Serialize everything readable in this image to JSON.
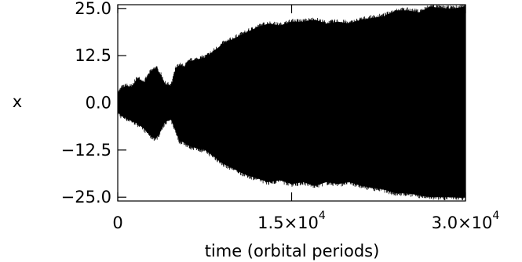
{
  "chart_data": {
    "type": "line",
    "title": "",
    "xlabel": "time (orbital periods)",
    "ylabel": "x",
    "xlim": [
      0,
      30000
    ],
    "ylim": [
      -26,
      26
    ],
    "x_ticks": [
      {
        "value": 0,
        "mantissa": "0",
        "exponent": ""
      },
      {
        "value": 15000,
        "mantissa": "1.5×10",
        "exponent": "4"
      },
      {
        "value": 30000,
        "mantissa": "3.0×10",
        "exponent": "4"
      }
    ],
    "y_ticks": [
      {
        "value": 25,
        "label": "25.0"
      },
      {
        "value": 12.5,
        "label": "12.5"
      },
      {
        "value": 0,
        "label": "0.0"
      },
      {
        "value": -12.5,
        "label": "−12.5"
      },
      {
        "value": -25,
        "label": "−25.0"
      }
    ],
    "grid": false,
    "legend": "none",
    "series": [
      {
        "style": "dense-oscillation-envelope",
        "color": "#000000",
        "x": [
          0,
          300,
          700,
          1200,
          1700,
          2300,
          2900,
          3300,
          3700,
          4100,
          4600,
          5000,
          5300,
          5700,
          6200,
          6800,
          7500,
          8200,
          9000,
          10000,
          11000,
          12000,
          13000,
          14000,
          15000,
          16000,
          17000,
          18000,
          19000,
          20000,
          21000,
          22000,
          23000,
          24000,
          25000,
          26000,
          27000,
          28000,
          29000,
          30000
        ],
        "upper": [
          2.5,
          3.8,
          4.5,
          4.2,
          6.5,
          5.5,
          8.5,
          9.3,
          7.5,
          5.0,
          4.5,
          9.0,
          10.0,
          9.5,
          11.0,
          11.5,
          12.0,
          13.5,
          15.5,
          17.0,
          18.5,
          20.0,
          21.0,
          20.5,
          21.5,
          21.5,
          22.0,
          21.0,
          21.5,
          21.0,
          22.0,
          22.5,
          23.0,
          24.5,
          24.5,
          24.0,
          25.5,
          25.0,
          25.0,
          25.5
        ],
        "lower": [
          -2.5,
          -3.5,
          -4.0,
          -4.8,
          -5.5,
          -7.0,
          -9.0,
          -9.5,
          -7.5,
          -5.0,
          -4.5,
          -7.5,
          -10.0,
          -10.5,
          -11.5,
          -12.0,
          -12.5,
          -14.0,
          -16.0,
          -17.5,
          -19.0,
          -20.0,
          -21.0,
          -20.5,
          -21.5,
          -21.0,
          -22.0,
          -21.0,
          -21.5,
          -21.0,
          -22.0,
          -22.5,
          -23.0,
          -24.0,
          -24.0,
          -24.5,
          -25.0,
          -25.0,
          -25.0,
          -25.0
        ]
      }
    ]
  }
}
